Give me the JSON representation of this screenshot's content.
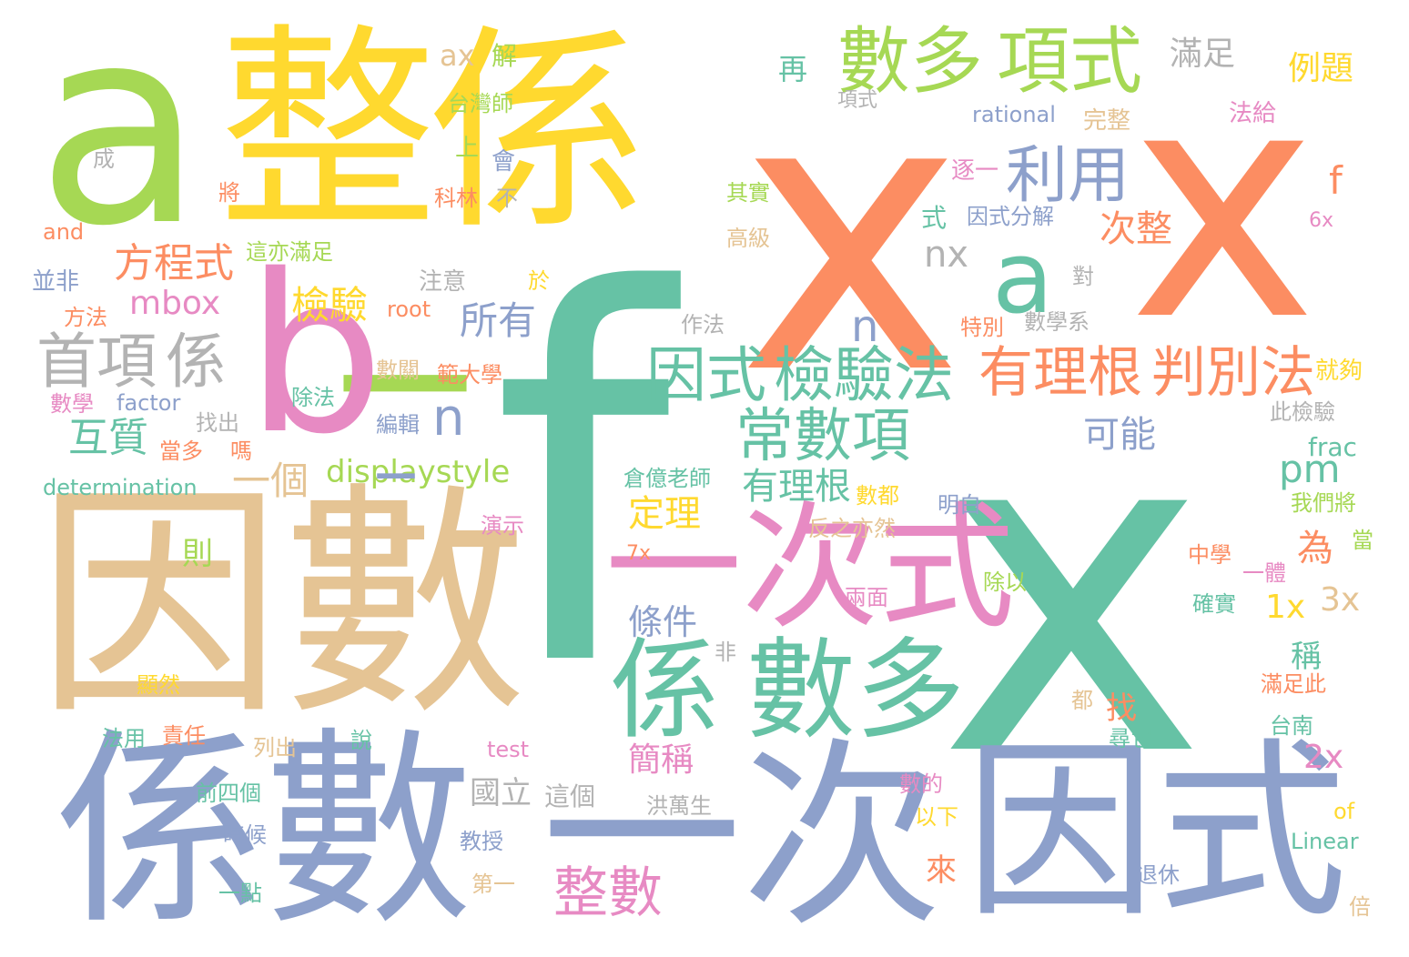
{
  "palette": {
    "green": "#66c2a5",
    "orange": "#fc8d62",
    "blue": "#8da0cb",
    "pink": "#e78ac3",
    "lime": "#a6d854",
    "yellow": "#ffd92f",
    "tan": "#e5c494",
    "gray": "#b3b3b3"
  },
  "words": [
    {
      "text": "f",
      "color": "#66c2a5"
    },
    {
      "text": "x",
      "color": "#66c2a5"
    },
    {
      "text": "x",
      "color": "#fc8d62"
    },
    {
      "text": "x",
      "color": "#fc8d62"
    },
    {
      "text": "a",
      "color": "#a6d854"
    },
    {
      "text": "整",
      "color": "#ffd92f"
    },
    {
      "text": "係",
      "color": "#ffd92f"
    },
    {
      "text": "_",
      "color": "#a6d854"
    },
    {
      "text": "b",
      "color": "#e78ac3"
    },
    {
      "text": "因數",
      "color": "#e5c494"
    },
    {
      "text": "係數",
      "color": "#8da0cb"
    },
    {
      "text": "一次",
      "color": "#8da0cb"
    },
    {
      "text": "因式",
      "color": "#8da0cb"
    },
    {
      "text": "一次式",
      "color": "#e78ac3"
    },
    {
      "text": "係",
      "color": "#66c2a5"
    },
    {
      "text": "數多",
      "color": "#66c2a5"
    },
    {
      "text": "數多",
      "color": "#a6d854"
    },
    {
      "text": "項式",
      "color": "#a6d854"
    },
    {
      "text": "a",
      "color": "#66c2a5"
    },
    {
      "text": "利用",
      "color": "#8da0cb"
    },
    {
      "text": "因式",
      "color": "#66c2a5"
    },
    {
      "text": "檢驗法",
      "color": "#66c2a5"
    },
    {
      "text": "有理根",
      "color": "#fc8d62"
    },
    {
      "text": "判別法",
      "color": "#fc8d62"
    },
    {
      "text": "常數項",
      "color": "#66c2a5"
    },
    {
      "text": "首項",
      "color": "#b3b3b3"
    },
    {
      "text": "係",
      "color": "#b3b3b3"
    },
    {
      "text": "方程式",
      "color": "#fc8d62"
    },
    {
      "text": "檢驗",
      "color": "#ffd92f"
    },
    {
      "text": "所有",
      "color": "#8da0cb"
    },
    {
      "text": "互質",
      "color": "#66c2a5"
    },
    {
      "text": "一個",
      "color": "#e5c494"
    },
    {
      "text": "displaystyle",
      "color": "#a6d854"
    },
    {
      "text": "有理根",
      "color": "#66c2a5"
    },
    {
      "text": "可能",
      "color": "#8da0cb"
    },
    {
      "text": "整數",
      "color": "#e78ac3"
    },
    {
      "text": "n",
      "color": "#8da0cb"
    },
    {
      "text": "n",
      "color": "#8da0cb"
    },
    {
      "text": "_",
      "color": "#8da0cb"
    },
    {
      "text": "mbox",
      "color": "#e78ac3"
    },
    {
      "text": "nx",
      "color": "#b3b3b3"
    },
    {
      "text": "次整",
      "color": "#fc8d62"
    },
    {
      "text": "pm",
      "color": "#66c2a5"
    },
    {
      "text": "為",
      "color": "#fc8d62"
    },
    {
      "text": "定理",
      "color": "#ffd92f"
    },
    {
      "text": "條件",
      "color": "#8da0cb"
    },
    {
      "text": "1x",
      "color": "#ffd92f"
    },
    {
      "text": "3x",
      "color": "#e5c494"
    },
    {
      "text": "2x",
      "color": "#e78ac3"
    },
    {
      "text": "簡稱",
      "color": "#e78ac3"
    },
    {
      "text": "國立",
      "color": "#b3b3b3"
    },
    {
      "text": "這個",
      "color": "#b3b3b3"
    },
    {
      "text": "來",
      "color": "#fc8d62"
    },
    {
      "text": "找",
      "color": "#fc8d62"
    },
    {
      "text": "稱",
      "color": "#66c2a5"
    },
    {
      "text": "則",
      "color": "#a6d854"
    },
    {
      "text": "f",
      "color": "#fc8d62"
    },
    {
      "text": "滿足",
      "color": "#b3b3b3"
    },
    {
      "text": "例題",
      "color": "#ffd92f"
    },
    {
      "text": "再",
      "color": "#66c2a5"
    },
    {
      "text": "ax",
      "color": "#e5c494"
    },
    {
      "text": "解",
      "color": "#a6d854"
    },
    {
      "text": "台灣師",
      "color": "#a6d854"
    },
    {
      "text": "項式",
      "color": "#b3b3b3"
    },
    {
      "text": "rational",
      "color": "#8da0cb"
    },
    {
      "text": "完整",
      "color": "#e5c494"
    },
    {
      "text": "法給",
      "color": "#e78ac3"
    },
    {
      "text": "上",
      "color": "#a6d854"
    },
    {
      "text": "會",
      "color": "#8da0cb"
    },
    {
      "text": "成",
      "color": "#b3b3b3"
    },
    {
      "text": "逐一",
      "color": "#e78ac3"
    },
    {
      "text": "科林",
      "color": "#fc8d62"
    },
    {
      "text": "不",
      "color": "#b3b3b3"
    },
    {
      "text": "將",
      "color": "#fc8d62"
    },
    {
      "text": "其實",
      "color": "#a6d854"
    },
    {
      "text": "式",
      "color": "#66c2a5"
    },
    {
      "text": "因式分解",
      "color": "#8da0cb"
    },
    {
      "text": "and",
      "color": "#fc8d62"
    },
    {
      "text": "高級",
      "color": "#e5c494"
    },
    {
      "text": "6x",
      "color": "#e78ac3"
    },
    {
      "text": "這亦滿足",
      "color": "#a6d854"
    },
    {
      "text": "並非",
      "color": "#8da0cb"
    },
    {
      "text": "注意",
      "color": "#b3b3b3"
    },
    {
      "text": "於",
      "color": "#ffd92f"
    },
    {
      "text": "對",
      "color": "#b3b3b3"
    },
    {
      "text": "方法",
      "color": "#fc8d62"
    },
    {
      "text": "root",
      "color": "#fc8d62"
    },
    {
      "text": "作法",
      "color": "#b3b3b3"
    },
    {
      "text": "特別",
      "color": "#fc8d62"
    },
    {
      "text": "數學系",
      "color": "#b3b3b3"
    },
    {
      "text": "數關",
      "color": "#e5c494"
    },
    {
      "text": "範大學",
      "color": "#fc8d62"
    },
    {
      "text": "就夠",
      "color": "#ffd92f"
    },
    {
      "text": "數學",
      "color": "#e78ac3"
    },
    {
      "text": "factor",
      "color": "#8da0cb"
    },
    {
      "text": "除法",
      "color": "#66c2a5"
    },
    {
      "text": "找出",
      "color": "#b3b3b3"
    },
    {
      "text": "編輯",
      "color": "#8da0cb"
    },
    {
      "text": "此檢驗",
      "color": "#b3b3b3"
    },
    {
      "text": "當多",
      "color": "#fc8d62"
    },
    {
      "text": "嗎",
      "color": "#fc8d62"
    },
    {
      "text": "frac",
      "color": "#66c2a5"
    },
    {
      "text": "determination",
      "color": "#66c2a5"
    },
    {
      "text": "倉億老師",
      "color": "#66c2a5"
    },
    {
      "text": "數都",
      "color": "#ffd92f"
    },
    {
      "text": "明白",
      "color": "#8da0cb"
    },
    {
      "text": "我們將",
      "color": "#a6d854"
    },
    {
      "text": "演示",
      "color": "#e78ac3"
    },
    {
      "text": "反之亦然",
      "color": "#e5c494"
    },
    {
      "text": "當",
      "color": "#a6d854"
    },
    {
      "text": "7x",
      "color": "#fc8d62"
    },
    {
      "text": "中學",
      "color": "#fc8d62"
    },
    {
      "text": "一體",
      "color": "#e78ac3"
    },
    {
      "text": "除以",
      "color": "#a6d854"
    },
    {
      "text": "兩面",
      "color": "#e78ac3"
    },
    {
      "text": "確實",
      "color": "#66c2a5"
    },
    {
      "text": "非",
      "color": "#b3b3b3"
    },
    {
      "text": "顯然",
      "color": "#ffd92f"
    },
    {
      "text": "滿足此",
      "color": "#fc8d62"
    },
    {
      "text": "都",
      "color": "#e5c494"
    },
    {
      "text": "台南",
      "color": "#66c2a5"
    },
    {
      "text": "法用",
      "color": "#66c2a5"
    },
    {
      "text": "責任",
      "color": "#fc8d62"
    },
    {
      "text": "列出",
      "color": "#e5c494"
    },
    {
      "text": "說",
      "color": "#66c2a5"
    },
    {
      "text": "test",
      "color": "#e78ac3"
    },
    {
      "text": "尋它",
      "color": "#66c2a5"
    },
    {
      "text": "前四個",
      "color": "#66c2a5"
    },
    {
      "text": "數的",
      "color": "#e78ac3"
    },
    {
      "text": "洪萬生",
      "color": "#b3b3b3"
    },
    {
      "text": "以下",
      "color": "#ffd92f"
    },
    {
      "text": "of",
      "color": "#ffd92f"
    },
    {
      "text": "時候",
      "color": "#8da0cb"
    },
    {
      "text": "教授",
      "color": "#8da0cb"
    },
    {
      "text": "Linear",
      "color": "#66c2a5"
    },
    {
      "text": "退休",
      "color": "#8da0cb"
    },
    {
      "text": "一點",
      "color": "#66c2a5"
    },
    {
      "text": "第一",
      "color": "#e5c494"
    },
    {
      "text": "倍",
      "color": "#e5c494"
    }
  ]
}
